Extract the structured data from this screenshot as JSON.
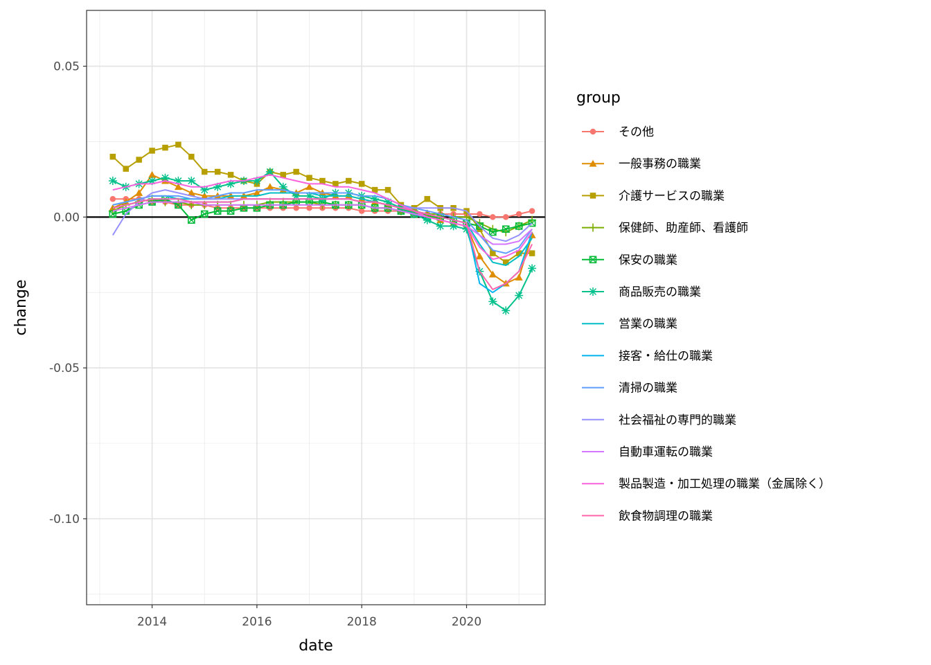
{
  "chart_data": {
    "type": "line",
    "xlabel": "date",
    "ylabel": "change",
    "xlim": [
      "2012-10-01",
      "2021-07-01"
    ],
    "ylim": [
      -0.1285,
      0.0685
    ],
    "x_ticks": [
      "2014",
      "2016",
      "2018",
      "2020"
    ],
    "y_ticks": [
      "0.05",
      "0.00",
      "-0.05",
      "-0.10"
    ],
    "y_tick_values": [
      0.05,
      0.0,
      -0.05,
      -0.1
    ],
    "reference_line": 0.0,
    "grid": true,
    "legend_position": "right",
    "legend_title": "group",
    "dates": [
      "2013-04",
      "2013-07",
      "2013-10",
      "2014-01",
      "2014-04",
      "2014-07",
      "2014-10",
      "2015-01",
      "2015-04",
      "2015-07",
      "2015-10",
      "2016-01",
      "2016-04",
      "2016-07",
      "2016-10",
      "2017-01",
      "2017-04",
      "2017-07",
      "2017-10",
      "2018-01",
      "2018-04",
      "2018-07",
      "2018-10",
      "2019-01",
      "2019-04",
      "2019-07",
      "2019-10",
      "2020-01",
      "2020-04",
      "2020-07",
      "2020-10",
      "2021-01",
      "2021-04"
    ],
    "series": [
      {
        "name": "その他",
        "color": "#F8766D",
        "marker": "circle",
        "values": [
          0.006,
          0.006,
          0.006,
          0.005,
          0.005,
          0.004,
          0.004,
          0.004,
          0.003,
          0.003,
          0.003,
          0.003,
          0.003,
          0.003,
          0.003,
          0.003,
          0.003,
          0.003,
          0.003,
          0.002,
          0.002,
          0.002,
          0.002,
          0.001,
          0.001,
          0.001,
          0.001,
          0.001,
          0.001,
          0.0,
          0.0,
          0.001,
          0.002
        ]
      },
      {
        "name": "一般事務の職業",
        "color": "#DE8C00",
        "marker": "triangle",
        "values": [
          0.003,
          0.005,
          0.008,
          0.014,
          0.012,
          0.01,
          0.008,
          0.007,
          0.007,
          0.007,
          0.007,
          0.008,
          0.01,
          0.009,
          0.008,
          0.01,
          0.008,
          0.007,
          0.007,
          0.006,
          0.005,
          0.004,
          0.003,
          0.002,
          0.001,
          -0.001,
          -0.002,
          -0.003,
          -0.013,
          -0.019,
          -0.022,
          -0.02,
          -0.006
        ]
      },
      {
        "name": "介護サービスの職業",
        "color": "#B79F00",
        "marker": "square",
        "values": [
          0.02,
          0.016,
          0.019,
          0.022,
          0.023,
          0.024,
          0.02,
          0.015,
          0.015,
          0.014,
          0.012,
          0.011,
          0.015,
          0.014,
          0.015,
          0.013,
          0.012,
          0.011,
          0.012,
          0.011,
          0.009,
          0.009,
          0.004,
          0.003,
          0.006,
          0.003,
          0.003,
          0.002,
          -0.004,
          -0.012,
          -0.015,
          -0.012,
          -0.012
        ]
      },
      {
        "name": "保健師、助産師、看護師",
        "color": "#7CAE00",
        "marker": "plus",
        "values": [
          0.002,
          0.004,
          0.005,
          0.006,
          0.005,
          0.005,
          0.004,
          0.004,
          0.004,
          0.004,
          0.004,
          0.004,
          0.005,
          0.005,
          0.005,
          0.005,
          0.004,
          0.004,
          0.004,
          0.004,
          0.003,
          0.003,
          0.002,
          0.002,
          0.001,
          0.001,
          0.0,
          0.0,
          -0.002,
          -0.004,
          -0.005,
          -0.003,
          -0.001
        ]
      },
      {
        "name": "保安の職業",
        "color": "#00BA38",
        "marker": "square-x",
        "values": [
          0.001,
          0.002,
          0.004,
          0.005,
          0.006,
          0.004,
          -0.001,
          0.001,
          0.002,
          0.002,
          0.003,
          0.003,
          0.004,
          0.004,
          0.005,
          0.005,
          0.005,
          0.004,
          0.004,
          0.004,
          0.003,
          0.003,
          0.002,
          0.001,
          0.0,
          0.0,
          -0.001,
          -0.002,
          -0.003,
          -0.005,
          -0.004,
          -0.003,
          -0.002
        ]
      },
      {
        "name": "商品販売の職業",
        "color": "#00C08B",
        "marker": "asterisk",
        "values": [
          0.012,
          0.01,
          0.011,
          0.012,
          0.013,
          0.012,
          0.012,
          0.009,
          0.01,
          0.011,
          0.012,
          0.012,
          0.015,
          0.01,
          0.007,
          0.007,
          0.006,
          0.008,
          0.008,
          0.007,
          0.006,
          0.005,
          0.003,
          0.001,
          -0.001,
          -0.003,
          -0.003,
          -0.004,
          -0.018,
          -0.028,
          -0.031,
          -0.026,
          -0.017
        ]
      },
      {
        "name": "営業の職業",
        "color": "#00BFC4",
        "marker": "none",
        "values": [
          0.004,
          0.005,
          0.006,
          0.007,
          0.007,
          0.006,
          0.006,
          0.006,
          0.006,
          0.007,
          0.007,
          0.007,
          0.008,
          0.008,
          0.008,
          0.008,
          0.007,
          0.007,
          0.007,
          0.006,
          0.005,
          0.004,
          0.003,
          0.002,
          0.001,
          0.0,
          -0.001,
          -0.002,
          -0.009,
          -0.015,
          -0.016,
          -0.013,
          -0.007
        ]
      },
      {
        "name": "接客・給仕の職業",
        "color": "#00B4EF",
        "marker": "none",
        "values": [
          0.003,
          0.004,
          0.005,
          0.006,
          0.006,
          0.006,
          0.005,
          0.005,
          0.005,
          0.005,
          0.006,
          0.006,
          0.006,
          0.006,
          0.006,
          0.006,
          0.006,
          0.006,
          0.006,
          0.005,
          0.005,
          0.004,
          0.003,
          0.002,
          0.001,
          0.0,
          -0.001,
          -0.002,
          -0.022,
          -0.025,
          -0.022,
          -0.018,
          -0.005
        ]
      },
      {
        "name": "清掃の職業",
        "color": "#619CFF",
        "marker": "none",
        "values": [
          0.004,
          0.005,
          0.006,
          0.007,
          0.007,
          0.007,
          0.006,
          0.006,
          0.007,
          0.008,
          0.008,
          0.009,
          0.009,
          0.009,
          0.008,
          0.008,
          0.008,
          0.008,
          0.008,
          0.007,
          0.007,
          0.006,
          0.004,
          0.003,
          0.002,
          0.001,
          0.0,
          -0.001,
          -0.006,
          -0.011,
          -0.012,
          -0.01,
          -0.004
        ]
      },
      {
        "name": "社会福祉の専門的職業",
        "color": "#9590FF",
        "marker": "none",
        "values": [
          -0.006,
          0.001,
          0.005,
          0.008,
          0.009,
          0.008,
          0.007,
          0.006,
          0.006,
          0.006,
          0.006,
          0.006,
          0.006,
          0.006,
          0.006,
          0.006,
          0.006,
          0.006,
          0.006,
          0.005,
          0.005,
          0.004,
          0.003,
          0.003,
          0.003,
          0.003,
          0.003,
          0.002,
          -0.003,
          -0.007,
          -0.008,
          -0.006,
          -0.002
        ]
      },
      {
        "name": "自動車運転の職業",
        "color": "#D575FE",
        "marker": "none",
        "values": [
          0.002,
          0.003,
          0.004,
          0.005,
          0.005,
          0.005,
          0.005,
          0.004,
          0.004,
          0.004,
          0.004,
          0.004,
          0.004,
          0.004,
          0.004,
          0.004,
          0.004,
          0.004,
          0.004,
          0.004,
          0.003,
          0.003,
          0.002,
          0.001,
          0.0,
          -0.001,
          -0.002,
          -0.003,
          -0.006,
          -0.009,
          -0.009,
          -0.008,
          -0.004
        ]
      },
      {
        "name": "製品製造・加工処理の職業（金属除く）",
        "color": "#F962DD",
        "marker": "none",
        "values": [
          0.009,
          0.01,
          0.011,
          0.011,
          0.012,
          0.011,
          0.01,
          0.01,
          0.011,
          0.012,
          0.012,
          0.013,
          0.014,
          0.013,
          0.012,
          0.011,
          0.011,
          0.01,
          0.01,
          0.009,
          0.008,
          0.006,
          0.004,
          0.002,
          0.0,
          -0.001,
          -0.002,
          -0.003,
          -0.01,
          -0.014,
          -0.013,
          -0.011,
          -0.005
        ]
      },
      {
        "name": "飲食物調理の職業",
        "color": "#FF65AC",
        "marker": "none",
        "values": [
          0.003,
          0.004,
          0.005,
          0.006,
          0.006,
          0.006,
          0.005,
          0.005,
          0.005,
          0.005,
          0.006,
          0.006,
          0.006,
          0.006,
          0.006,
          0.006,
          0.006,
          0.006,
          0.006,
          0.005,
          0.005,
          0.004,
          0.003,
          0.002,
          0.001,
          0.0,
          -0.001,
          -0.002,
          -0.018,
          -0.024,
          -0.022,
          -0.018,
          -0.009
        ]
      }
    ]
  }
}
